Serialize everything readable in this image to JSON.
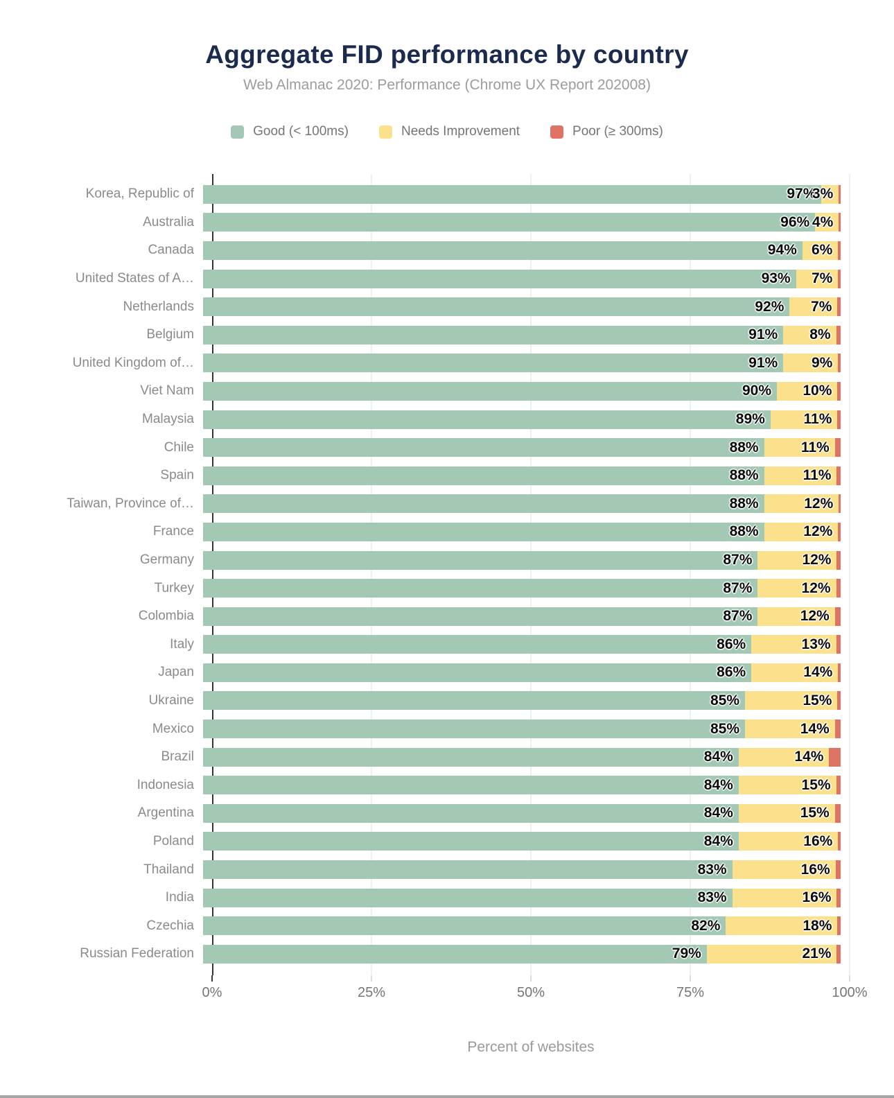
{
  "title": "Aggregate FID performance by country",
  "subtitle": "Web Almanac 2020: Performance (Chrome UX Report 202008)",
  "legend": [
    {
      "label": "Good (< 100ms)",
      "color": "#a3c9b5"
    },
    {
      "label": "Needs Improvement",
      "color": "#fce18c"
    },
    {
      "label": "Poor (≥ 300ms)",
      "color": "#de7265"
    }
  ],
  "xlabel": "Percent of websites",
  "colors": {
    "good": "#a3c9b5",
    "needs_improvement": "#fce18c",
    "poor": "#de7265",
    "title": "#1b2b4d",
    "subtitle": "#9c9c9c",
    "axis_text": "#757575",
    "country_label": "#8a8a8a",
    "gridline": "#f0f0f0",
    "axis_line": "#333333"
  },
  "x_axis": {
    "tick_values": [
      0,
      25,
      50,
      75,
      100
    ],
    "tick_labels": [
      "0%",
      "25%",
      "50%",
      "75%",
      "100%"
    ],
    "gridline_values": [
      25,
      50,
      75,
      100
    ]
  },
  "chart_data": {
    "type": "bar",
    "orientation": "horizontal",
    "stacked": true,
    "xlim": [
      0,
      100
    ],
    "xlabel": "Percent of websites",
    "title": "Aggregate FID performance by country",
    "subtitle": "Web Almanac 2020: Performance (Chrome UX Report 202008)",
    "legend_position": "top",
    "grid": true,
    "categories": [
      "Korea, Republic of",
      "Australia",
      "Canada",
      "United States of A…",
      "Netherlands",
      "Belgium",
      "United Kingdom of…",
      "Viet Nam",
      "Malaysia",
      "Chile",
      "Spain",
      "Taiwan, Province of…",
      "France",
      "Germany",
      "Turkey",
      "Colombia",
      "Italy",
      "Japan",
      "Ukraine",
      "Mexico",
      "Brazil",
      "Indonesia",
      "Argentina",
      "Poland",
      "Thailand",
      "India",
      "Czechia",
      "Russian Federation"
    ],
    "series": [
      {
        "name": "Good (< 100ms)",
        "color": "#a3c9b5",
        "values": [
          97,
          96,
          94,
          93,
          92,
          91,
          91,
          90,
          89,
          88,
          88,
          88,
          88,
          87,
          87,
          87,
          86,
          86,
          85,
          85,
          84,
          84,
          84,
          84,
          83,
          83,
          82,
          79
        ],
        "labels": [
          "97%",
          "96%",
          "94%",
          "93%",
          "92%",
          "91%",
          "91%",
          "90%",
          "89%",
          "88%",
          "88%",
          "88%",
          "88%",
          "87%",
          "87%",
          "87%",
          "86%",
          "86%",
          "85%",
          "85%",
          "84%",
          "84%",
          "84%",
          "84%",
          "83%",
          "83%",
          "82%",
          "79%"
        ]
      },
      {
        "name": "Needs Improvement",
        "color": "#fce18c",
        "values": [
          3,
          4,
          6,
          7,
          7,
          8,
          9,
          10,
          11,
          11,
          11,
          12,
          12,
          12,
          12,
          12,
          13,
          14,
          15,
          14,
          14,
          15,
          15,
          16,
          16,
          16,
          18,
          21
        ],
        "labels": [
          "3%",
          "4%",
          "6%",
          "7%",
          "7%",
          "8%",
          "9%",
          "10%",
          "11%",
          "11%",
          "11%",
          "12%",
          "12%",
          "12%",
          "12%",
          "12%",
          "13%",
          "14%",
          "15%",
          "14%",
          "14%",
          "15%",
          "15%",
          "16%",
          "16%",
          "16%",
          "18%",
          "21%"
        ]
      },
      {
        "name": "Poor (≥ 300ms)",
        "color": "#de7265",
        "values": [
          0.3,
          0.3,
          0.4,
          0.4,
          0.5,
          0.7,
          0.4,
          0.5,
          0.5,
          0.9,
          0.6,
          0.3,
          0.4,
          0.6,
          0.7,
          0.9,
          0.7,
          0.4,
          0.5,
          0.9,
          1.8,
          0.7,
          0.9,
          0.4,
          0.8,
          0.6,
          0.5,
          0.6
        ],
        "labels": [
          "",
          "",
          "",
          "",
          "",
          "",
          "",
          "",
          "",
          "",
          "",
          "",
          "",
          "",
          "",
          "",
          "",
          "",
          "",
          "",
          "",
          "",
          "",
          "",
          "",
          "",
          "",
          ""
        ]
      }
    ]
  }
}
